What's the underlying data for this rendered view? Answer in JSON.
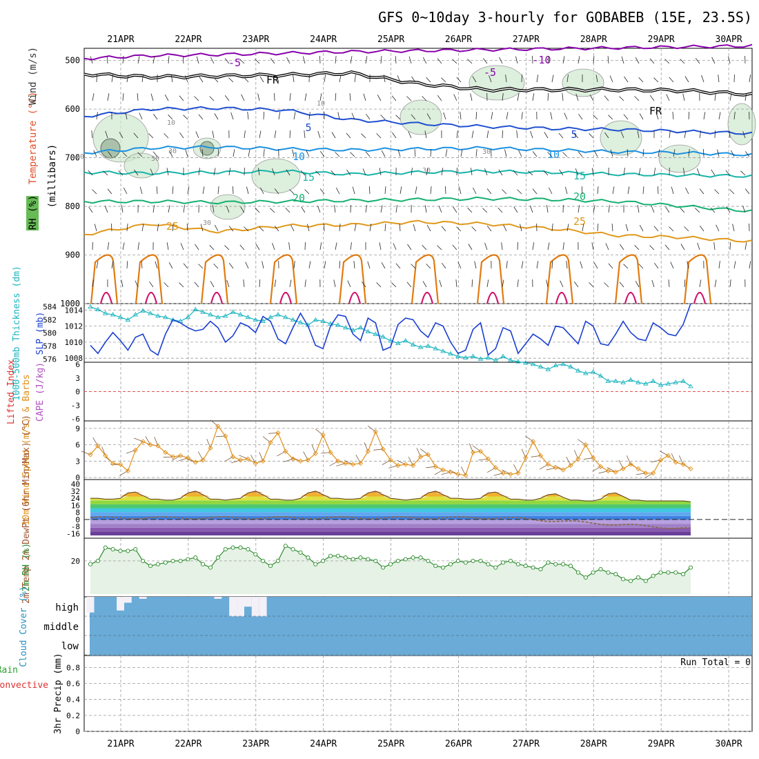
{
  "title": "GFS 0~10day 3-hourly for GOBABEB (15E, 23.5S)",
  "colors": {
    "purple": "#8800aa",
    "black": "#000000",
    "blue_dark": "#1e4fd0",
    "blue_mid": "#1a90e0",
    "teal": "#17b4a8",
    "green": "#15b070",
    "orange": "#e0981a",
    "orange2": "#e07a10",
    "magenta": "#d0156e",
    "rh_green": "#cfe8cf",
    "slp_blue": "#1a3fd0",
    "thick_cyan": "#1ab4c0",
    "wind10": "#e0901a",
    "cloud_blue": "#6aabd8",
    "grid": "#999999"
  },
  "chart_data": {
    "type": "line",
    "dates": [
      "21APR",
      "22APR",
      "23APR",
      "24APR",
      "25APR",
      "26APR",
      "27APR",
      "28APR",
      "29APR",
      "30APR"
    ],
    "panels": [
      {
        "id": "upper_air",
        "left_labels": [
          "RH (%)",
          "Temperature (°C)",
          "Wind (m/s)"
        ],
        "ylabel": "(millibars)",
        "yticks": [
          500,
          600,
          700,
          800,
          900,
          1000
        ],
        "contour_labels": {
          "purple": [
            "-5",
            "-10",
            "-5"
          ],
          "black": [
            "FR",
            "FR"
          ],
          "blue_dark": [
            "5",
            "5"
          ],
          "blue_mid": [
            "10",
            "10"
          ],
          "teal": [
            "15",
            "15"
          ],
          "green": [
            "20",
            "20"
          ],
          "orange": [
            "25",
            "25"
          ],
          "rh": [
            "10",
            "30",
            "50",
            "30",
            "10",
            "30",
            "30",
            "30"
          ]
        },
        "isolines": {
          "purple": [
            496,
            490,
            488,
            485,
            482,
            480,
            478,
            476,
            474,
            472,
            470
          ],
          "black": [
            528,
            534,
            532,
            530,
            526,
            548,
            560,
            560,
            560,
            562,
            570
          ],
          "blue_dark": [
            615,
            600,
            598,
            602,
            622,
            630,
            636,
            640,
            642,
            646,
            650
          ],
          "blue_mid": [
            690,
            680,
            678,
            682,
            684,
            682,
            680,
            684,
            688,
            690,
            694
          ],
          "teal": [
            730,
            732,
            730,
            728,
            734,
            730,
            728,
            730,
            734,
            736,
            738
          ],
          "green": [
            790,
            790,
            792,
            790,
            788,
            786,
            784,
            786,
            790,
            800,
            810
          ],
          "orange": [
            858,
            836,
            852,
            840,
            838,
            832,
            836,
            846,
            860,
            864,
            872
          ]
        }
      },
      {
        "id": "thickness_slp",
        "ylabel_left": "1000-500mb Thickness (dm)",
        "ylabel_right": "SLP (mb)",
        "yticks_left": [
          576,
          578,
          580,
          582,
          584
        ],
        "yticks_right": [
          1008,
          1010,
          1012,
          1014
        ],
        "thickness_dm": [
          584.0,
          583.6,
          583.0,
          582.8,
          582.4,
          582.0,
          582.8,
          583.4,
          583.0,
          582.6,
          582.4,
          582.0,
          581.8,
          582.4,
          583.6,
          583.2,
          582.8,
          582.4,
          582.6,
          583.2,
          582.8,
          582.4,
          582.0,
          581.8,
          582.4,
          582.8,
          582.4,
          582.0,
          581.6,
          581.2,
          582.0,
          581.8,
          581.4,
          581.2,
          580.8,
          580.4,
          580.8,
          580.2,
          579.8,
          579.4,
          578.8,
          578.4,
          578.8,
          578.2,
          577.8,
          578.0,
          577.6,
          577.2,
          576.8,
          576.4,
          576.2,
          576.4,
          576.0,
          576.2,
          575.8,
          576.4,
          575.8,
          575.6,
          575.4,
          575.2,
          574.8,
          574.4,
          575.0,
          575.2,
          574.8,
          574.2,
          573.8,
          574.0,
          573.4,
          572.6,
          572.6,
          572.4,
          572.8,
          572.4,
          572.2,
          572.6,
          572.0,
          572.2,
          572.4,
          572.6,
          571.8
        ],
        "slp_mb": [
          1009.6,
          1008.6,
          1010.0,
          1011.2,
          1010.2,
          1009.0,
          1010.6,
          1011.0,
          1009.0,
          1008.4,
          1011.0,
          1012.8,
          1012.4,
          1011.8,
          1011.4,
          1011.6,
          1012.6,
          1011.8,
          1010.0,
          1010.8,
          1012.4,
          1012.0,
          1011.2,
          1013.2,
          1012.6,
          1010.4,
          1009.8,
          1011.8,
          1013.6,
          1012.0,
          1009.6,
          1009.2,
          1012.0,
          1013.4,
          1013.2,
          1011.0,
          1010.2,
          1013.0,
          1012.4,
          1009.0,
          1009.4,
          1012.2,
          1013.0,
          1012.8,
          1011.4,
          1010.6,
          1012.4,
          1012.0,
          1010.0,
          1008.6,
          1009.0,
          1011.6,
          1012.4,
          1008.4,
          1009.2,
          1011.8,
          1011.4,
          1008.6,
          1009.8,
          1011.0,
          1010.4,
          1009.6,
          1012.0,
          1011.8,
          1010.8,
          1009.8,
          1012.6,
          1012.0,
          1009.8,
          1009.6,
          1011.0,
          1012.6,
          1011.2,
          1010.4,
          1010.2,
          1012.4,
          1011.8,
          1011.0,
          1010.8,
          1012.2,
          1014.8
        ]
      },
      {
        "id": "cape_li",
        "ylabel_left": "Lifted Index",
        "ylabel_right": "CAPE (J/kg)",
        "yticks": [
          "6",
          "3",
          "0",
          "-3",
          "-6"
        ]
      },
      {
        "id": "wind10m",
        "ylabel": "10m Wind Speed (m/s) & Barbs",
        "yticks": [
          0,
          3,
          6,
          9
        ],
        "speed_ms": [
          4.2,
          5.8,
          4.0,
          2.6,
          2.4,
          1.2,
          5.0,
          6.6,
          6.0,
          5.8,
          4.6,
          3.8,
          4.0,
          3.6,
          2.8,
          3.2,
          5.4,
          9.4,
          7.6,
          3.8,
          3.2,
          3.4,
          2.6,
          3.0,
          6.4,
          8.2,
          4.8,
          3.4,
          3.0,
          3.2,
          4.4,
          7.8,
          4.6,
          3.0,
          2.6,
          2.4,
          2.6,
          4.8,
          8.4,
          5.2,
          3.2,
          2.2,
          2.4,
          2.2,
          3.8,
          4.2,
          2.0,
          1.4,
          1.0,
          0.6,
          0.4,
          4.6,
          4.8,
          3.4,
          1.8,
          0.8,
          0.6,
          0.8,
          3.6,
          6.6,
          4.0,
          2.4,
          1.8,
          1.4,
          2.2,
          3.4,
          6.0,
          3.6,
          2.0,
          1.2,
          1.0,
          1.6,
          2.4,
          1.6,
          0.8,
          0.8,
          3.2,
          4.0,
          2.8,
          2.4,
          1.6
        ]
      },
      {
        "id": "temp2m",
        "ylabel": "2m Temp 2m DewPt (6hr Min/Max) (°C)",
        "yticks": [
          -16,
          -8,
          0,
          8,
          16,
          24,
          32,
          40
        ],
        "temp_c": [
          24,
          24,
          23,
          23,
          24,
          30,
          31,
          27,
          23,
          23,
          22,
          22,
          24,
          30,
          32,
          28,
          23,
          23,
          22,
          23,
          24,
          30,
          32,
          28,
          23,
          23,
          22,
          22,
          24,
          30,
          32,
          28,
          24,
          24,
          23,
          23,
          24,
          30,
          32,
          28,
          24,
          23,
          22,
          23,
          24,
          30,
          32,
          28,
          24,
          24,
          23,
          23,
          24,
          30,
          31,
          27,
          23,
          23,
          22,
          22,
          24,
          28,
          29,
          25,
          22,
          22,
          21,
          21,
          23,
          29,
          30,
          26,
          22,
          22,
          21,
          21,
          21,
          21,
          21,
          21,
          20
        ]
      },
      {
        "id": "rh2m",
        "ylabel": "2m RH (%)",
        "yticks": [
          20
        ],
        "rh_pct": [
          18,
          20,
          28,
          27,
          26,
          26,
          27,
          20,
          17,
          18,
          19,
          20,
          20,
          21,
          22,
          18,
          16,
          22,
          27,
          28,
          28,
          27,
          24,
          20,
          17,
          20,
          29,
          27,
          25,
          22,
          18,
          20,
          23,
          23,
          22,
          21,
          22,
          21,
          20,
          16,
          18,
          20,
          21,
          22,
          22,
          20,
          17,
          16,
          18,
          20,
          19,
          20,
          20,
          18,
          16,
          19,
          20,
          18,
          17,
          16,
          15,
          19,
          18,
          18,
          17,
          13,
          10,
          13,
          15,
          13,
          12,
          9,
          8,
          10,
          8,
          11,
          13,
          13,
          13,
          12,
          16
        ]
      },
      {
        "id": "cloud",
        "ylabel": "Cloud Cover (%)",
        "levels": [
          "high",
          "middle",
          "low"
        ],
        "high_cover": [
          0.8,
          0.0,
          0.0,
          0.0,
          0.7,
          0.3,
          0.0,
          0.1,
          0.0,
          0.0,
          0.0,
          0.0,
          0.0,
          0.0,
          0.0,
          0.0,
          0.0,
          0.1,
          0.0,
          1.0,
          1.0,
          0.5,
          1.0,
          1.0,
          0.0,
          0.0,
          0.0,
          0.0,
          0.0,
          0.0,
          0.0,
          0.0,
          0.0,
          0.0,
          0.0,
          0.0,
          0.0,
          0.0,
          0.0,
          0.0,
          0.0,
          0.0,
          0.0,
          0.0,
          0.0,
          0.0,
          0.0,
          0.0,
          0.0,
          0.0,
          0.0,
          0.0,
          0.0,
          0.0,
          0.0,
          0.0,
          0.0,
          0.0,
          0.0,
          0.0,
          0.0,
          0.0,
          0.0,
          0.0,
          0.0,
          0.0,
          0.0,
          0.0,
          0.0,
          0.0,
          0.0,
          0.0,
          0.0,
          0.0,
          0.0,
          0.0,
          0.0,
          0.0,
          0.0,
          0.0,
          0.0
        ]
      },
      {
        "id": "precip",
        "ylabel_left": "Total / Rain",
        "ylabel_left2": "Convective",
        "ylabel": "3hr Precip (mm)",
        "yticks": [
          0,
          0.2,
          0.4,
          0.6,
          0.8
        ],
        "run_total": "Run Total = 0"
      }
    ]
  }
}
